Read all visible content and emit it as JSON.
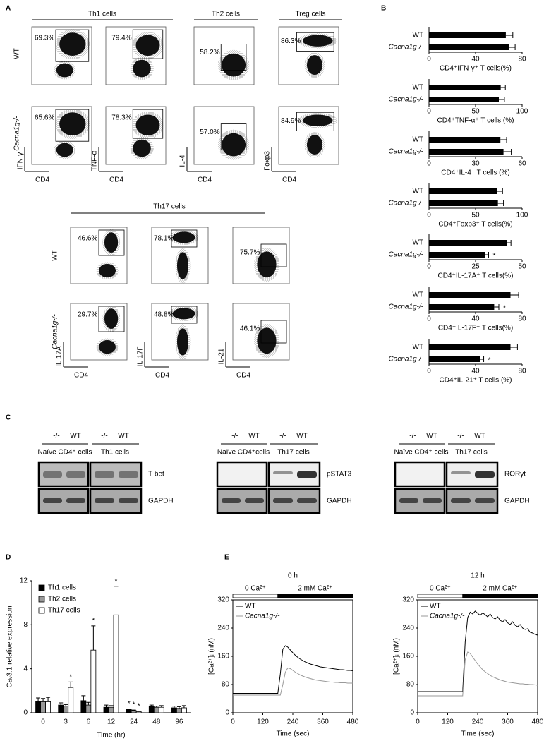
{
  "panel_labels": [
    "A",
    "B",
    "C",
    "D",
    "E"
  ],
  "panel_a": {
    "groups": [
      "Th1 cells",
      "Th2 cells",
      "Treg cells"
    ],
    "row_labels": [
      "WT",
      "Cacna1g-/-"
    ],
    "plots": [
      {
        "y_label": "IFN-γ",
        "x_label": "CD4",
        "percent": [
          "69.3%",
          "65.6%"
        ]
      },
      {
        "y_label": "TNF-α",
        "x_label": "CD4",
        "percent": [
          "79.4%",
          "78.3%"
        ]
      },
      {
        "y_label": "IL-4",
        "x_label": "CD4",
        "percent": [
          "58.2%",
          "57.0%"
        ]
      },
      {
        "y_label": "Foxp3",
        "x_label": "CD4",
        "percent": [
          "86.3%",
          "84.9%"
        ]
      }
    ],
    "th17": {
      "title": "Th17 cells",
      "row_labels": [
        "WT",
        "Cacna1g-/-"
      ],
      "plots": [
        {
          "y_label": "IL-17A",
          "x_label": "CD4",
          "percent": [
            "46.6%",
            "29.7%"
          ]
        },
        {
          "y_label": "IL-17F",
          "x_label": "CD4",
          "percent": [
            "78.1%",
            "48.8%"
          ]
        },
        {
          "y_label": "IL-21",
          "x_label": "CD4",
          "percent": [
            "75.7%",
            "46.1%"
          ]
        }
      ]
    }
  },
  "panel_c": {
    "blots": [
      {
        "lanes": [
          "-/-",
          "WT",
          "-/-",
          "WT"
        ],
        "groups": [
          "Naïve CD4⁺ cells",
          "Th1 cells"
        ],
        "proteins": [
          "T-bet",
          "GAPDH"
        ]
      },
      {
        "lanes": [
          "-/-",
          "WT",
          "-/-",
          "WT"
        ],
        "groups": [
          "Naïve CD4⁺cells",
          "Th17 cells"
        ],
        "proteins": [
          "pSTAT3",
          "GAPDH"
        ]
      },
      {
        "lanes": [
          "-/-",
          "WT",
          "-/-",
          "WT"
        ],
        "groups": [
          "Naïve CD4⁺ cells",
          "Th17 cells"
        ],
        "proteins": [
          "RORγt",
          "GAPDH"
        ]
      }
    ]
  },
  "chart_data": [
    {
      "type": "hbar",
      "categories": [
        "WT",
        "Cacna1g-/-"
      ],
      "values": [
        66,
        69
      ],
      "errors": [
        6,
        5
      ],
      "color": "#000000",
      "xlim": [
        0,
        80
      ],
      "xticks": [
        0,
        40,
        80
      ],
      "xlabel": "CD4⁺IFN-γ⁺ T cells(%)"
    },
    {
      "type": "hbar",
      "categories": [
        "WT",
        "Cacna1g-/-"
      ],
      "values": [
        77,
        75
      ],
      "errors": [
        5,
        6
      ],
      "color": "#000000",
      "xlim": [
        0,
        100
      ],
      "xticks": [
        0,
        50,
        100
      ],
      "xlabel": "CD4⁺TNF-α⁺ T cells (%)"
    },
    {
      "type": "hbar",
      "categories": [
        "WT",
        "Cacna1g-/-"
      ],
      "values": [
        46,
        48
      ],
      "errors": [
        4,
        5
      ],
      "color": "#000000",
      "xlim": [
        0,
        60
      ],
      "xticks": [
        0,
        30,
        60
      ],
      "xlabel": "CD4⁺IL-4⁺ T cells (%)"
    },
    {
      "type": "hbar",
      "categories": [
        "WT",
        "Cacna1g-/-"
      ],
      "values": [
        73,
        74
      ],
      "errors": [
        6,
        6
      ],
      "color": "#000000",
      "xlim": [
        0,
        100
      ],
      "xticks": [
        0,
        50,
        100
      ],
      "xlabel": "CD4⁺Foxp3⁺ T cells(%)"
    },
    {
      "type": "hbar",
      "categories": [
        "WT",
        "Cacna1g-/-"
      ],
      "values": [
        42,
        30
      ],
      "errors": [
        2,
        2
      ],
      "color": "#000000",
      "xlim": [
        0,
        50
      ],
      "xticks": [
        0,
        25,
        50
      ],
      "xlabel": "CD4⁺IL-17A⁺ T cells(%)",
      "annotations": [
        {
          "text": "*",
          "at": 1
        }
      ]
    },
    {
      "type": "hbar",
      "categories": [
        "WT",
        "Cacna1g-/-"
      ],
      "values": [
        70,
        56
      ],
      "errors": [
        7,
        4
      ],
      "color": "#000000",
      "xlim": [
        0,
        80
      ],
      "xticks": [
        0,
        40,
        80
      ],
      "xlabel": "CD4⁺IL-17F⁺ T cells(%)",
      "annotations": [
        {
          "text": "*",
          "at": 1
        }
      ]
    },
    {
      "type": "hbar",
      "categories": [
        "WT",
        "Cacna1g-/-"
      ],
      "values": [
        70,
        44
      ],
      "errors": [
        6,
        3
      ],
      "color": "#000000",
      "xlim": [
        0,
        80
      ],
      "xticks": [
        0,
        40,
        80
      ],
      "xlabel": "CD4⁺IL-21⁺ T cells (%)",
      "annotations": [
        {
          "text": "*",
          "at": 1
        }
      ]
    },
    {
      "type": "grouped_bar",
      "categories": [
        "0",
        "3",
        "6",
        "12",
        "24",
        "48",
        "96"
      ],
      "series": [
        {
          "name": "Th1 cells",
          "color": "#000000",
          "values": [
            1.0,
            0.7,
            1.1,
            0.5,
            0.3,
            0.6,
            0.45
          ],
          "errors": [
            0.35,
            0.2,
            0.45,
            0.2,
            0.05,
            0.1,
            0.15
          ]
        },
        {
          "name": "Th2 cells",
          "color": "#999999",
          "values": [
            1.0,
            0.6,
            0.7,
            0.5,
            0.2,
            0.5,
            0.4
          ],
          "errors": [
            0.3,
            0.15,
            0.25,
            0.15,
            0.05,
            0.1,
            0.15
          ]
        },
        {
          "name": "Th17 cells",
          "color": "#ffffff",
          "values": [
            1.0,
            2.3,
            5.7,
            8.9,
            0.1,
            0.5,
            0.45
          ],
          "errors": [
            0.4,
            0.5,
            2.2,
            2.6,
            0.05,
            0.15,
            0.2
          ]
        }
      ],
      "ylim": [
        0,
        12
      ],
      "yticks": [
        0,
        4,
        8,
        12
      ],
      "ylabel": "Caᵥ3.1 relative expression",
      "xlabel": "Time (hr)",
      "annotations": [
        {
          "text": "*",
          "series": 2,
          "at": 1
        },
        {
          "text": "*",
          "series": 2,
          "at": 2
        },
        {
          "text": "*",
          "series": 2,
          "at": 3
        },
        {
          "text": "*",
          "series": 0,
          "at": 4
        },
        {
          "text": "*",
          "series": 1,
          "at": 4
        },
        {
          "text": "*",
          "series": 2,
          "at": 4
        }
      ]
    },
    {
      "type": "line",
      "title": "0 h",
      "x": [
        0,
        10,
        20,
        30,
        40,
        50,
        60,
        70,
        80,
        90,
        100,
        110,
        120,
        130,
        140,
        150,
        160,
        170,
        180,
        190,
        200,
        210,
        220,
        230,
        240,
        250,
        260,
        270,
        280,
        290,
        300,
        310,
        320,
        330,
        340,
        350,
        360,
        370,
        380,
        390,
        400,
        410,
        420,
        430,
        440,
        450,
        460,
        470,
        480
      ],
      "series": [
        {
          "name": "WT",
          "color": "#000000",
          "values": [
            55,
            55,
            55,
            55,
            55,
            55,
            55,
            55,
            55,
            55,
            55,
            55,
            55,
            55,
            55,
            55,
            55,
            55,
            55,
            110,
            180,
            190,
            186,
            178,
            170,
            163,
            157,
            152,
            148,
            144,
            141,
            138,
            136,
            134,
            132,
            130,
            129,
            128,
            127,
            126,
            125,
            124,
            123,
            122,
            122,
            121,
            120,
            120,
            119
          ]
        },
        {
          "name": "Cacna1g-/-",
          "color": "#999999",
          "values": [
            50,
            50,
            50,
            50,
            50,
            50,
            50,
            50,
            50,
            50,
            50,
            50,
            50,
            50,
            50,
            50,
            50,
            50,
            50,
            50,
            80,
            115,
            127,
            125,
            120,
            115,
            111,
            107,
            104,
            101,
            99,
            97,
            95,
            93,
            92,
            91,
            90,
            89,
            88,
            87,
            87,
            86,
            86,
            85,
            85,
            85,
            84,
            84,
            84
          ]
        }
      ],
      "phases": [
        {
          "label": "0 Ca²⁺",
          "start": 0,
          "end": 180
        },
        {
          "label": "2 mM Ca²⁺",
          "start": 180,
          "end": 480
        }
      ],
      "xlim": [
        0,
        480
      ],
      "xticks": [
        0,
        120,
        240,
        360,
        480
      ],
      "ylim": [
        0,
        320
      ],
      "yticks": [
        0,
        80,
        160,
        240,
        320
      ],
      "xlabel": "Time (sec)",
      "ylabel": "[Ca²⁺]ᵢ (nM)"
    },
    {
      "type": "line",
      "title": "12 h",
      "x": [
        0,
        10,
        20,
        30,
        40,
        50,
        60,
        70,
        80,
        90,
        100,
        110,
        120,
        130,
        140,
        150,
        160,
        170,
        180,
        190,
        200,
        210,
        220,
        230,
        240,
        250,
        260,
        270,
        280,
        290,
        300,
        310,
        320,
        330,
        340,
        350,
        360,
        370,
        380,
        390,
        400,
        410,
        420,
        430,
        440,
        450,
        460,
        470,
        480
      ],
      "series": [
        {
          "name": "WT",
          "color": "#000000",
          "values": [
            60,
            60,
            60,
            60,
            60,
            60,
            60,
            60,
            60,
            60,
            60,
            60,
            60,
            60,
            60,
            60,
            60,
            60,
            60,
            200,
            270,
            285,
            280,
            288,
            282,
            276,
            283,
            278,
            272,
            280,
            270,
            266,
            272,
            262,
            258,
            264,
            255,
            250,
            258,
            248,
            244,
            250,
            240,
            236,
            238,
            228,
            226,
            222,
            220
          ]
        },
        {
          "name": "Cacna1g-/-",
          "color": "#999999",
          "values": [
            48,
            48,
            48,
            48,
            48,
            48,
            48,
            48,
            48,
            48,
            48,
            48,
            48,
            48,
            48,
            48,
            48,
            48,
            48,
            150,
            172,
            168,
            158,
            148,
            138,
            130,
            122,
            116,
            111,
            106,
            102,
            99,
            96,
            93,
            91,
            89,
            87,
            86,
            85,
            84,
            83,
            82,
            82,
            81,
            81,
            80,
            80,
            79,
            78
          ]
        }
      ],
      "phases": [
        {
          "label": "0 Ca²⁺",
          "start": 0,
          "end": 180
        },
        {
          "label": "2 mM Ca²⁺",
          "start": 180,
          "end": 480
        }
      ],
      "xlim": [
        0,
        480
      ],
      "xticks": [
        0,
        120,
        240,
        360,
        480
      ],
      "ylim": [
        0,
        320
      ],
      "yticks": [
        0,
        80,
        160,
        240,
        320
      ],
      "xlabel": "Time (sec)",
      "ylabel": "[Ca²⁺]ᵢ (nM)"
    }
  ]
}
